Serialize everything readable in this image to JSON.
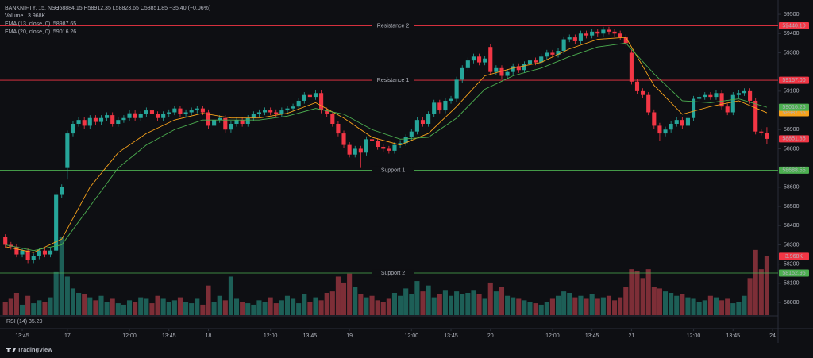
{
  "legend": {
    "symbol": "BANKNIFTY, 15, NSE",
    "ohlc": "O58884.15 H58912.35 L58823.65 C58851.85 −35.40 (−0.06%)"
  },
  "chart_data": {
    "type": "candlestick",
    "up_color": "#26a69a",
    "down_color": "#f23645",
    "open": [
      58340,
      58300,
      58290,
      58250,
      58270,
      58220,
      58240,
      58270,
      58250,
      58270,
      58560,
      58700,
      58880,
      58930,
      58950,
      58920,
      58960,
      58940,
      58960,
      58975,
      58930,
      58950,
      58960,
      58985,
      58960,
      58980,
      59000,
      58980,
      58960,
      58980,
      58990,
      59010,
      58980,
      58990,
      59000,
      59010,
      58990,
      58920,
      58950,
      58960,
      58900,
      58930,
      58950,
      58930,
      58960,
      58980,
      58990,
      59000,
      58990,
      58980,
      59000,
      59010,
      59020,
      59050,
      59080,
      59070,
      59090,
      59000,
      58980,
      58930,
      58880,
      58820,
      58770,
      58800,
      58780,
      58850,
      58840,
      58810,
      58800,
      58790,
      58820,
      58830,
      58860,
      58890,
      58950,
      58930,
      58980,
      59040,
      59000,
      59050,
      59060,
      59160,
      59220,
      59260,
      59280,
      59250,
      59330,
      59200,
      59220,
      59180,
      59200,
      59230,
      59210,
      59240,
      59260,
      59250,
      59280,
      59300,
      59290,
      59310,
      59370,
      59380,
      59360,
      59400,
      59390,
      59410,
      59400,
      59420,
      59410,
      59400,
      59380,
      59300,
      59150,
      59100,
      59080,
      58990,
      58920,
      58880,
      58900,
      58930,
      58950,
      58920,
      58960,
      59060,
      59070,
      59080,
      59070,
      59090,
      59020,
      58990,
      59080,
      59090,
      59100,
      59050,
      58890,
      58884.15
    ],
    "high": [
      58355,
      58315,
      58305,
      58285,
      58285,
      58255,
      58285,
      58285,
      58285,
      58575,
      58615,
      58895,
      58945,
      58965,
      58965,
      58975,
      58975,
      58975,
      58990,
      58990,
      58965,
      58975,
      59000,
      59000,
      58995,
      59015,
      59015,
      58995,
      58995,
      59005,
      59025,
      59025,
      59005,
      59015,
      59025,
      59025,
      59005,
      58965,
      58975,
      58975,
      58945,
      58965,
      58965,
      58975,
      58995,
      59005,
      59015,
      59015,
      59005,
      59015,
      59025,
      59035,
      59065,
      59095,
      59095,
      59105,
      59105,
      59015,
      58995,
      58945,
      58895,
      58835,
      58815,
      58815,
      58865,
      58865,
      58855,
      58825,
      58815,
      58835,
      58845,
      58875,
      58905,
      58965,
      58965,
      58995,
      59055,
      59055,
      59065,
      59075,
      59175,
      59235,
      59275,
      59295,
      59295,
      59285,
      59345,
      59235,
      59235,
      59215,
      59245,
      59245,
      59255,
      59275,
      59275,
      59295,
      59315,
      59315,
      59325,
      59385,
      59395,
      59395,
      59415,
      59415,
      59425,
      59425,
      59435,
      59435,
      59425,
      59415,
      59395,
      59315,
      59165,
      59115,
      59095,
      59005,
      58935,
      58915,
      58945,
      58965,
      58965,
      58975,
      59075,
      59085,
      59095,
      59095,
      59105,
      59105,
      59035,
      59095,
      59105,
      59115,
      59115,
      59065,
      58905,
      58912.35
    ],
    "low": [
      58285,
      58275,
      58235,
      58235,
      58205,
      58205,
      58225,
      58235,
      58235,
      58255,
      58545,
      58640,
      58865,
      58915,
      58905,
      58905,
      58925,
      58925,
      58945,
      58915,
      58915,
      58935,
      58945,
      58945,
      58945,
      58965,
      58965,
      58945,
      58945,
      58965,
      58975,
      58965,
      58965,
      58975,
      58985,
      58975,
      58905,
      58905,
      58935,
      58885,
      58885,
      58915,
      58915,
      58915,
      58945,
      58965,
      58975,
      58975,
      58965,
      58965,
      58985,
      58995,
      59005,
      59035,
      59055,
      59055,
      58985,
      58965,
      58915,
      58865,
      58805,
      58755,
      58755,
      58700,
      58765,
      58825,
      58795,
      58785,
      58775,
      58775,
      58805,
      58815,
      58845,
      58875,
      58915,
      58915,
      58965,
      58985,
      58985,
      59035,
      59045,
      59145,
      59205,
      59245,
      59235,
      59235,
      59185,
      59185,
      59165,
      59165,
      59185,
      59195,
      59195,
      59225,
      59235,
      59235,
      59265,
      59275,
      59275,
      59295,
      59355,
      59345,
      59345,
      59375,
      59375,
      59385,
      59385,
      59395,
      59385,
      59365,
      59335,
      59135,
      59085,
      59065,
      58975,
      58905,
      58840,
      58865,
      58885,
      58915,
      58905,
      58905,
      58945,
      59045,
      59055,
      59055,
      59055,
      59005,
      58975,
      58975,
      59065,
      59075,
      59035,
      58875,
      58870,
      58823.65
    ],
    "close": [
      58300,
      58290,
      58250,
      58270,
      58220,
      58240,
      58270,
      58250,
      58270,
      58560,
      58600,
      58880,
      58930,
      58950,
      58920,
      58960,
      58940,
      58960,
      58975,
      58930,
      58950,
      58960,
      58985,
      58960,
      58980,
      59000,
      58980,
      58960,
      58980,
      58990,
      59010,
      58980,
      58990,
      59000,
      59010,
      58990,
      58920,
      58950,
      58960,
      58900,
      58930,
      58950,
      58930,
      58960,
      58980,
      58990,
      59000,
      58990,
      58980,
      59000,
      59010,
      59020,
      59050,
      59080,
      59070,
      59090,
      59000,
      58980,
      58930,
      58880,
      58820,
      58770,
      58800,
      58780,
      58850,
      58840,
      58810,
      58800,
      58790,
      58820,
      58830,
      58860,
      58890,
      58950,
      58930,
      58980,
      59040,
      59000,
      59050,
      59060,
      59160,
      59220,
      59260,
      59280,
      59250,
      59270,
      59200,
      59220,
      59180,
      59200,
      59230,
      59210,
      59240,
      59260,
      59250,
      59280,
      59300,
      59290,
      59310,
      59370,
      59380,
      59360,
      59400,
      59390,
      59410,
      59400,
      59420,
      59410,
      59400,
      59380,
      59350,
      59150,
      59100,
      59080,
      58990,
      58920,
      58880,
      58900,
      58930,
      58950,
      58920,
      58960,
      59060,
      59070,
      59080,
      59070,
      59090,
      59020,
      58990,
      59080,
      59090,
      59100,
      59050,
      58890,
      58885,
      58851.85
    ],
    "xlim": [
      -0.24,
      136.7
    ],
    "xticks": [
      {
        "value": 3,
        "label": "13:45"
      },
      {
        "value": 11,
        "label": "17"
      },
      {
        "value": 22,
        "label": "12:00"
      },
      {
        "value": 29,
        "label": "13:45"
      },
      {
        "value": 36,
        "label": "18"
      },
      {
        "value": 47,
        "label": "12:00"
      },
      {
        "value": 54,
        "label": "13:45"
      },
      {
        "value": 61,
        "label": "19"
      },
      {
        "value": 72,
        "label": "12:00"
      },
      {
        "value": 79,
        "label": "13:45"
      },
      {
        "value": 86,
        "label": "20"
      },
      {
        "value": 97,
        "label": "12:00"
      },
      {
        "value": 104,
        "label": "13:45"
      },
      {
        "value": 111,
        "label": "21"
      },
      {
        "value": 122,
        "label": "12:00"
      },
      {
        "value": 129,
        "label": "13:45"
      },
      {
        "value": 136,
        "label": "24"
      }
    ],
    "ylim": [
      57934,
      59554
    ],
    "yticks": [
      59500,
      59400,
      59300,
      59100,
      58900,
      58800,
      58600,
      58500,
      58400,
      58300,
      58200,
      58100,
      58000
    ],
    "volume": {
      "name": "Volume",
      "last_value_label": "3.968K",
      "ylim": [
        0,
        21000
      ],
      "up_color": "#1d5f57",
      "down_color": "#7d2e37",
      "values": [
        900,
        1100,
        1500,
        700,
        1300,
        800,
        1000,
        900,
        1200,
        2900,
        5300,
        2600,
        1800,
        1500,
        1400,
        1200,
        1000,
        1300,
        900,
        1100,
        800,
        700,
        1000,
        900,
        1200,
        1100,
        800,
        1300,
        1100,
        900,
        1000,
        1200,
        900,
        800,
        1100,
        700,
        2000,
        900,
        1300,
        1000,
        2600,
        1100,
        900,
        800,
        700,
        1000,
        900,
        1200,
        800,
        1000,
        1300,
        1100,
        800,
        1400,
        900,
        1200,
        1000,
        1500,
        1600,
        2600,
        2200,
        2800,
        1900,
        1400,
        1200,
        1300,
        1000,
        900,
        1100,
        1500,
        1300,
        1800,
        1400,
        2300,
        1600,
        2000,
        1200,
        1400,
        1700,
        1300,
        1600,
        1400,
        1500,
        1700,
        1400,
        1100,
        2200,
        1600,
        1900,
        1300,
        1200,
        1100,
        1000,
        900,
        800,
        700,
        900,
        1100,
        1300,
        1600,
        1500,
        1200,
        1300,
        1100,
        1400,
        1100,
        1200,
        1300,
        1000,
        1200,
        1900,
        3100,
        3000,
        2500,
        3100,
        1900,
        1800,
        1600,
        1500,
        1300,
        1400,
        1200,
        1100,
        900,
        1000,
        1300,
        1200,
        1000,
        1100,
        800,
        900,
        1300,
        2500,
        4400,
        3100,
        3968
      ]
    },
    "series": [
      {
        "name": "EMA (13, close, 0)",
        "color": "#f7a21b",
        "x": [
          0,
          5,
          10,
          15,
          20,
          25,
          30,
          35,
          40,
          45,
          50,
          55,
          60,
          65,
          70,
          75,
          80,
          85,
          90,
          95,
          100,
          105,
          110,
          115,
          120,
          125,
          130,
          135
        ],
        "values": [
          58290,
          58260,
          58330,
          58600,
          58780,
          58880,
          58950,
          58985,
          58960,
          58960,
          58985,
          59040,
          58960,
          58860,
          58820,
          58880,
          59020,
          59180,
          59220,
          59250,
          59320,
          59370,
          59380,
          59130,
          58980,
          59020,
          59050,
          58987.65
        ]
      },
      {
        "name": "EMA (20, close, 0)",
        "color": "#4caf50",
        "x": [
          0,
          5,
          10,
          15,
          20,
          25,
          30,
          35,
          40,
          45,
          50,
          55,
          60,
          65,
          70,
          75,
          80,
          85,
          90,
          95,
          100,
          105,
          110,
          115,
          120,
          125,
          130,
          135
        ],
        "values": [
          58300,
          58270,
          58300,
          58500,
          58700,
          58820,
          58900,
          58950,
          58950,
          58950,
          58970,
          59010,
          58980,
          58900,
          58850,
          58860,
          58960,
          59110,
          59180,
          59220,
          59280,
          59330,
          59350,
          59190,
          59050,
          59040,
          59060,
          59016.26
        ]
      }
    ],
    "levels": [
      {
        "name": "Resistance 2",
        "value": 59440.1,
        "label": "59440.10",
        "color": "#f23645"
      },
      {
        "name": "Resistance 1",
        "value": 59157,
        "label": "59157.00",
        "color": "#f23645"
      },
      {
        "name": "Support 1",
        "value": 58688.55,
        "label": "58688.55",
        "color": "#4caf50"
      },
      {
        "name": "Support 2",
        "value": 58152.95,
        "label": "58152.95",
        "color": "#4caf50"
      }
    ],
    "rsi": {
      "name": "RSI (14)",
      "value": 35.29,
      "color": "#7e57c2"
    }
  },
  "branding": "TradingView"
}
